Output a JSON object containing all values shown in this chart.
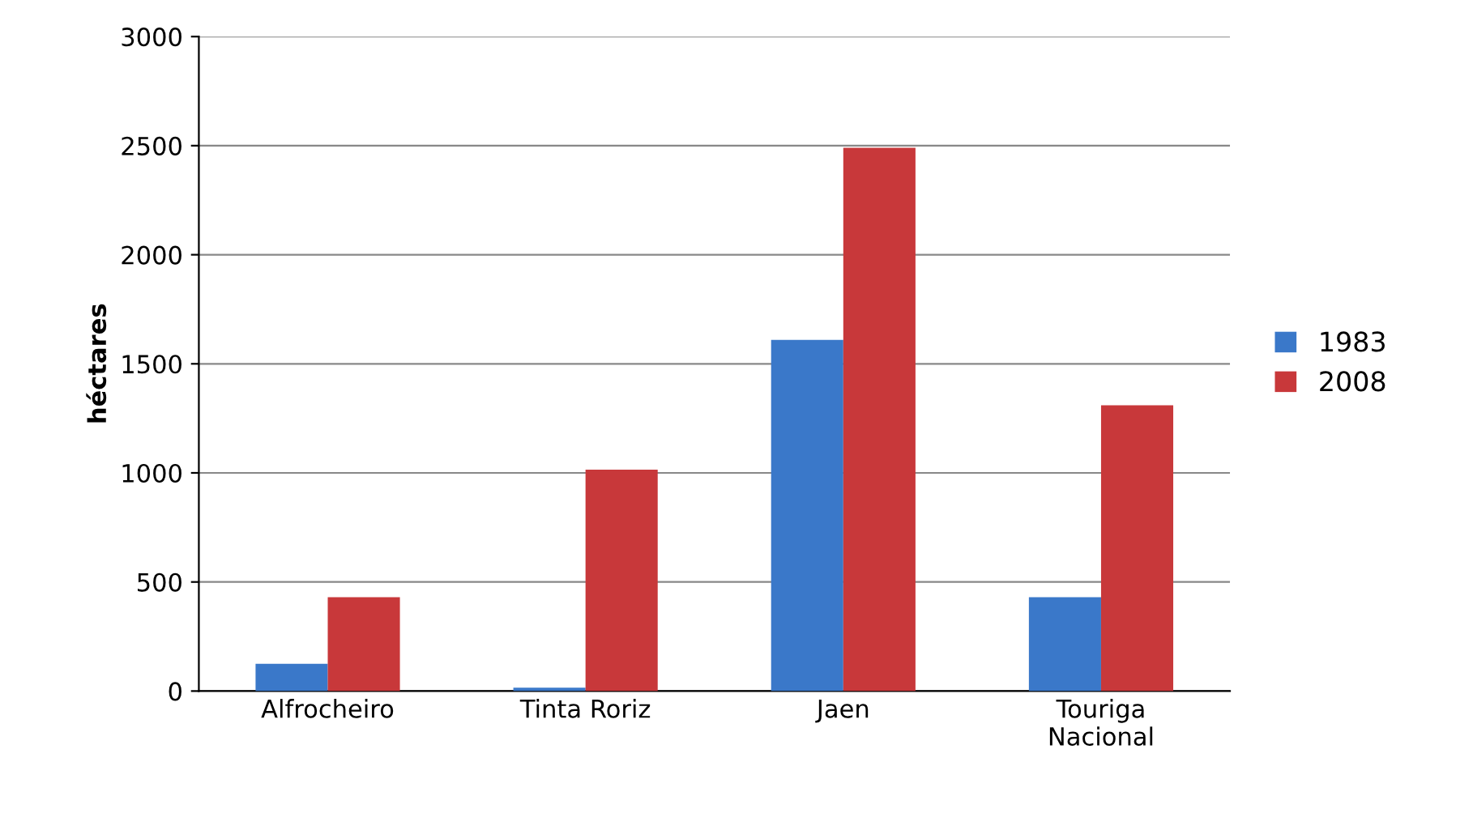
{
  "chart_data": {
    "type": "bar",
    "ylabel": "héctares",
    "categories": [
      "Alfrocheiro",
      "Tinta Roriz",
      "Jaen",
      "Touriga\nNacional"
    ],
    "series": [
      {
        "name": "1983",
        "color": "#3a78c9",
        "values": [
          125,
          15,
          1610,
          430
        ]
      },
      {
        "name": "2008",
        "color": "#c8383a",
        "values": [
          430,
          1015,
          2490,
          1310
        ]
      }
    ],
    "ylim": [
      0,
      3000
    ],
    "yticks": [
      0,
      500,
      1000,
      1500,
      2000,
      2500,
      3000
    ],
    "grid": "y",
    "legend": "right"
  }
}
